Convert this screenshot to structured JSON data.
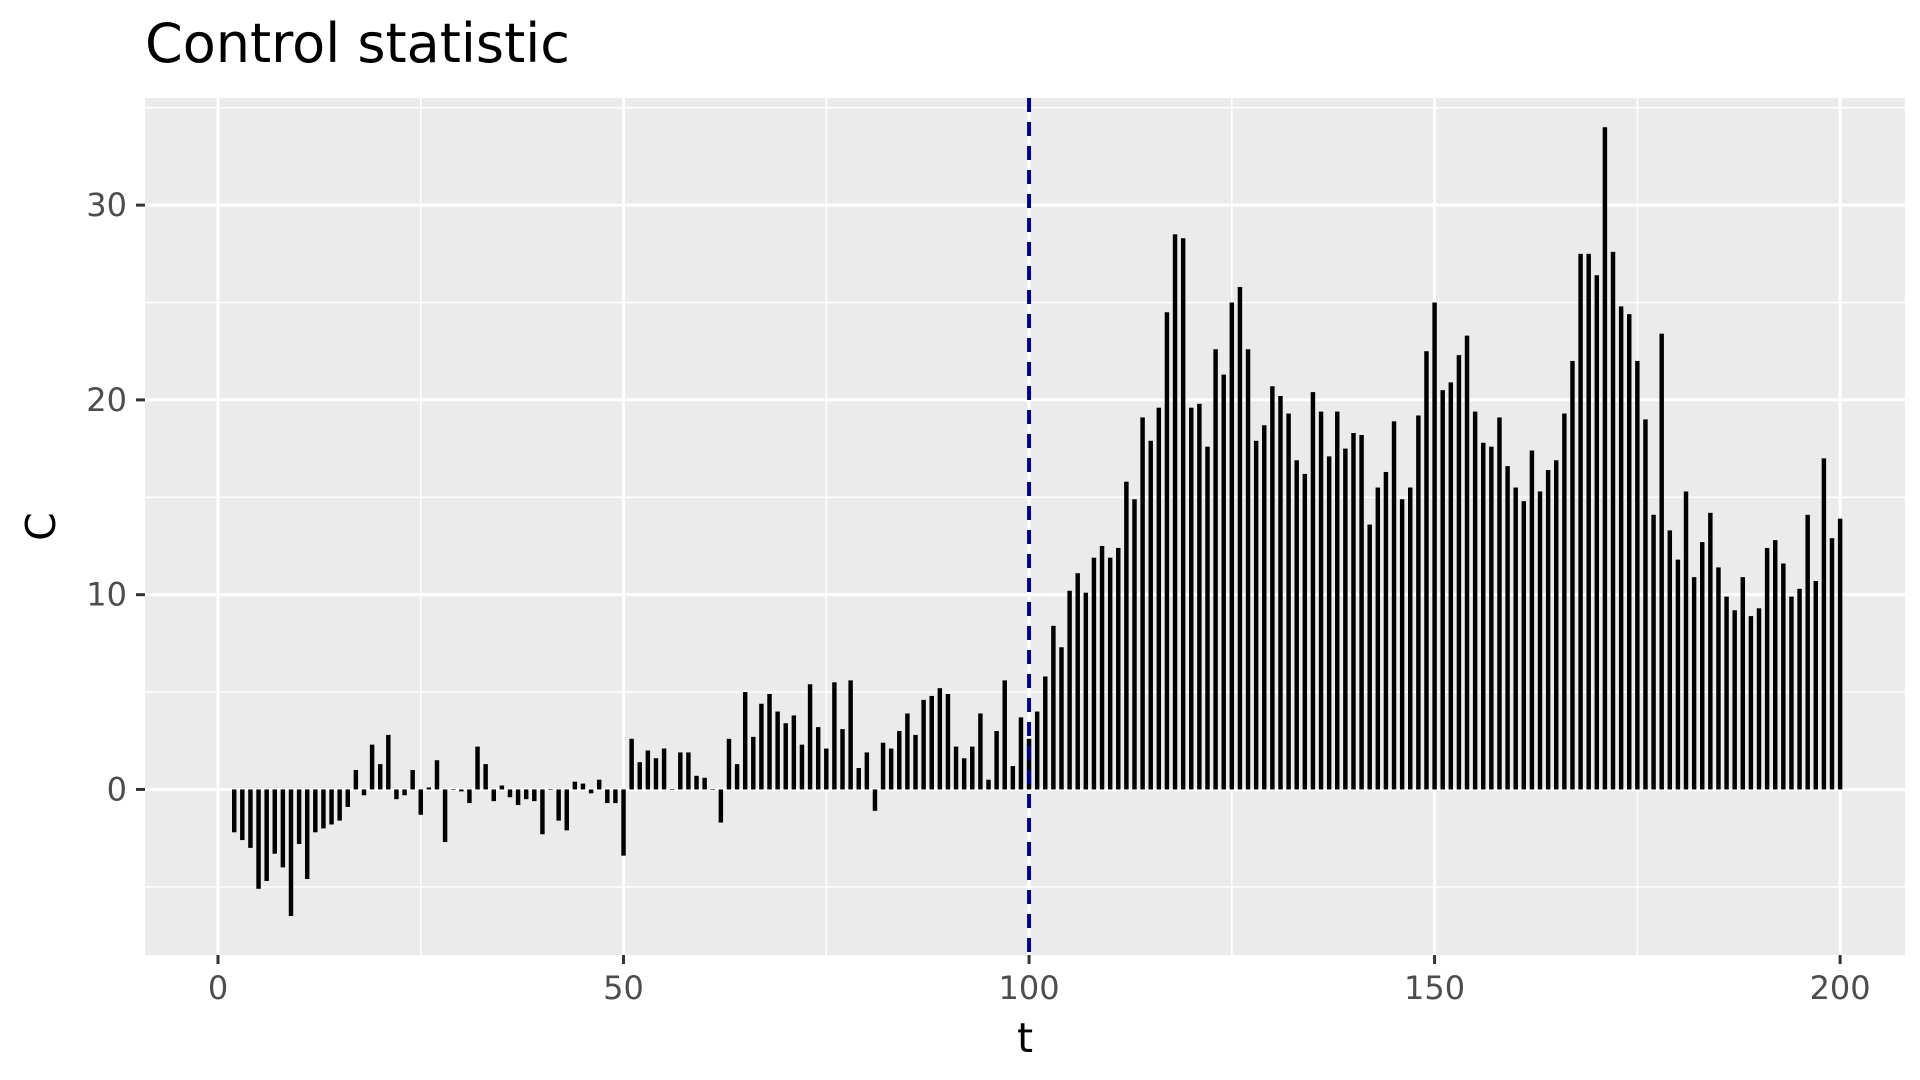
{
  "chart_data": {
    "type": "bar",
    "title": "Control statistic",
    "xlabel": "t",
    "ylabel": "C",
    "xlim": [
      -9,
      208
    ],
    "ylim": [
      -8.5,
      35.5
    ],
    "x_ticks": [
      0,
      50,
      100,
      150,
      200
    ],
    "y_ticks": [
      0,
      10,
      20,
      30
    ],
    "x_tick_labels": [
      "0",
      "50",
      "100",
      "150",
      "200"
    ],
    "y_tick_labels": [
      "0",
      "10",
      "20",
      "30"
    ],
    "grid": true,
    "legend": "none",
    "colors": {
      "panel": "#ebebeb",
      "grid": "#ffffff",
      "bar": "#000000",
      "reference_line": "#00008b",
      "tick_label": "#4d4d4d"
    },
    "reference_line": {
      "x": 100,
      "style": "dashed"
    },
    "series": [
      {
        "x_start": 2,
        "values": [
          -2.2,
          -2.6,
          -3.0,
          -5.1,
          -4.7,
          -3.3,
          -4.0,
          -6.5,
          -2.8,
          -4.6,
          -2.2,
          -2.0,
          -1.8,
          -1.6,
          -0.9,
          1.0,
          -0.3,
          2.3,
          1.3,
          2.8,
          -0.5,
          -0.3,
          1.0,
          -1.3,
          0.1,
          1.5,
          -2.7,
          0.0,
          -0.1,
          -0.7,
          2.2,
          1.3,
          -0.6,
          0.2,
          -0.4,
          -0.8,
          -0.5,
          -0.6,
          -2.3,
          0.0,
          -1.6,
          -2.1,
          0.4,
          0.3,
          -0.2,
          0.5,
          -0.7,
          -0.7,
          -3.4,
          2.6,
          1.4,
          2.0,
          1.6,
          2.1,
          0.0,
          1.9,
          1.9,
          0.7,
          0.6,
          0.0,
          -1.7,
          2.6,
          1.3,
          5.0,
          2.7,
          4.4,
          4.9,
          4.0,
          3.4,
          3.8,
          2.3,
          5.4,
          3.2,
          2.1,
          5.5,
          3.1,
          5.6,
          1.1,
          1.9,
          -1.1,
          2.4,
          2.1,
          3.0,
          3.9,
          2.8,
          4.6,
          4.8,
          5.2,
          4.9,
          2.2,
          1.6,
          2.2,
          3.9,
          0.5,
          3.0,
          5.6,
          1.2,
          3.7,
          2.6,
          4.0,
          5.8,
          8.4,
          7.3,
          10.2,
          11.1,
          10.1,
          11.9,
          12.5,
          11.9,
          12.4,
          15.8,
          14.9,
          19.1,
          17.9,
          19.6,
          24.5,
          28.5,
          28.3,
          19.6,
          19.8,
          17.6,
          22.6,
          21.3,
          25.0,
          25.8,
          22.6,
          17.9,
          18.7,
          20.7,
          20.2,
          19.3,
          16.9,
          16.2,
          20.4,
          19.4,
          17.1,
          19.4,
          17.5,
          18.3,
          18.2,
          13.6,
          15.5,
          16.3,
          18.9,
          14.9,
          15.5,
          19.2,
          22.5,
          25.0,
          20.5,
          20.9,
          22.3,
          23.3,
          19.4,
          17.8,
          17.6,
          19.1,
          16.6,
          15.5,
          14.8,
          17.4,
          15.3,
          16.4,
          16.9,
          19.3,
          22.0,
          27.5,
          27.5,
          26.4,
          34.0,
          27.6,
          24.8,
          24.4,
          22.0,
          19.0,
          14.1,
          23.4,
          13.3,
          11.8,
          15.3,
          10.9,
          12.7,
          14.2,
          11.4,
          9.9,
          9.2,
          10.9,
          8.9,
          9.3,
          12.4,
          12.8,
          11.6,
          9.9,
          10.3,
          14.1,
          10.7,
          17.0,
          12.9,
          13.9
        ]
      }
    ]
  }
}
